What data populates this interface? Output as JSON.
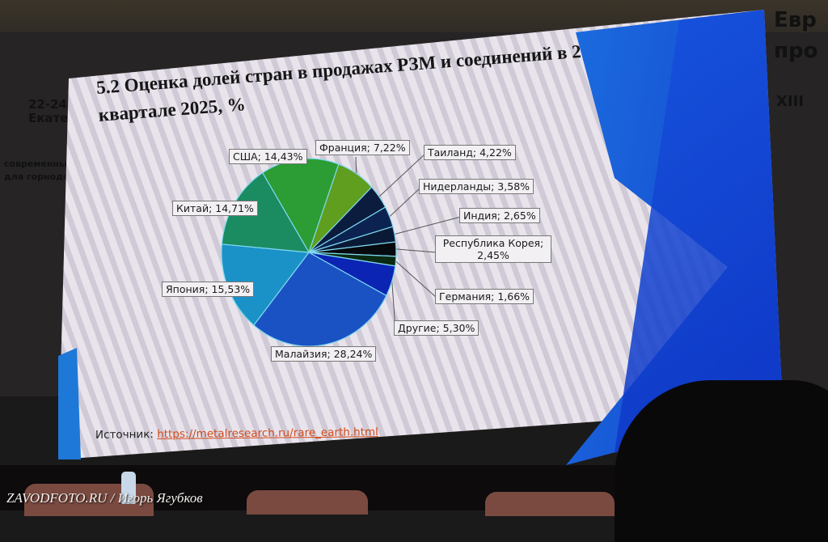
{
  "background_signage": {
    "left_lines": [
      "22-24",
      "Екате",
      "современны",
      "для горнодо"
    ],
    "right_lines": [
      "Евр",
      "про",
      "XIII"
    ]
  },
  "slide": {
    "title": "5.2 Оценка долей стран в продажах РЗМ и соединений в 2 квартале 2025, %",
    "source_label": "Источник:",
    "source_link": "https://metalresearch.ru/rare_earth.html"
  },
  "watermark": "ZAVODFOTO.RU / Игорь Ягубков",
  "chart_data": {
    "type": "pie",
    "title": "5.2 Оценка долей стран в продажах РЗМ и соединений в 2 квартале 2025, %",
    "categories": [
      "США",
      "Франция",
      "Таиланд",
      "Нидерланды",
      "Индия",
      "Республика Корея",
      "Германия",
      "Другие",
      "Малайзия",
      "Япония",
      "Китай"
    ],
    "values": [
      14.43,
      7.22,
      4.22,
      3.58,
      2.65,
      2.45,
      1.66,
      5.3,
      28.24,
      15.53,
      14.71
    ],
    "data_labels": [
      "США; 14,43%",
      "Франция; 7,22%",
      "Таиланд; 4,22%",
      "Нидерланды; 3,58%",
      "Индия; 2,65%",
      "Республика Корея; 2,45%",
      "Германия; 1,66%",
      "Другие; 5,30%",
      "Малайзия; 28,24%",
      "Япония; 15,53%",
      "Китай; 14,71%"
    ],
    "colors": [
      "#2c9c34",
      "#5f9e1e",
      "#0b1c3e",
      "#0c2352",
      "#0a1a36",
      "#06090e",
      "#0b2a12",
      "#0b24b4",
      "#1a52c4",
      "#1a92c8",
      "#1b8c62"
    ],
    "legend": "none (data labels with leader lines)"
  }
}
